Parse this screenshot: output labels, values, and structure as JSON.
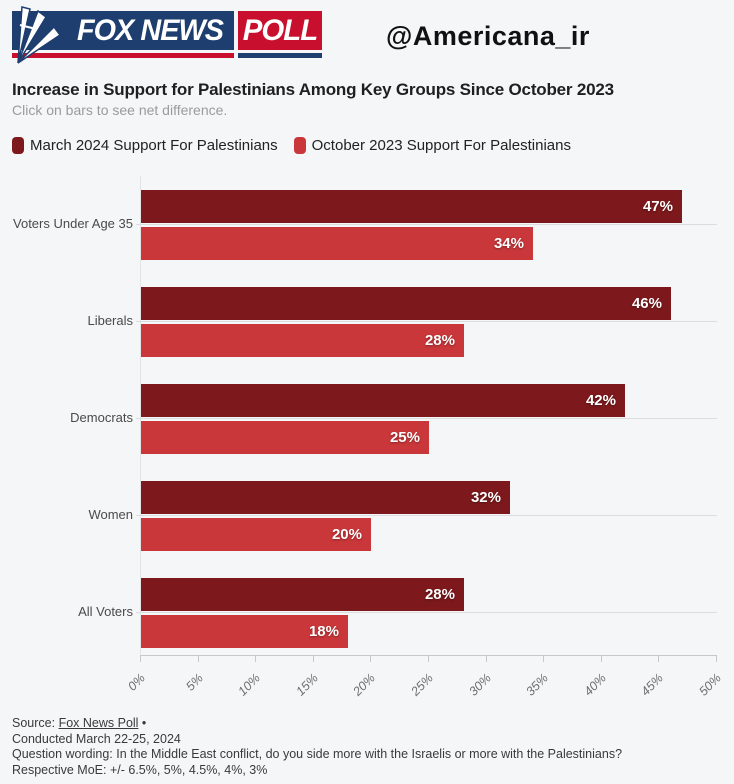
{
  "header": {
    "logo": {
      "fox_text": "FOX NEWS",
      "poll_text": "POLL"
    },
    "handle": "@Americana_ir"
  },
  "title": "Increase in Support for Palestinians Among Key Groups Since October 2023",
  "subtitle": "Click on bars to see net difference.",
  "chart_data": {
    "type": "bar",
    "orientation": "horizontal",
    "title": "Increase in Support for Palestinians Among Key Groups Since October 2023",
    "categories": [
      "Voters Under Age 35",
      "Liberals",
      "Democrats",
      "Women",
      "All Voters"
    ],
    "series": [
      {
        "name": "March 2024 Support For Palestinians",
        "color": "#7d191c",
        "values": [
          47,
          46,
          42,
          32,
          28
        ]
      },
      {
        "name": "October 2023 Support For Palestinians",
        "color": "#c9373a",
        "values": [
          34,
          28,
          25,
          20,
          18
        ]
      }
    ],
    "value_suffix": "%",
    "xlim": [
      0,
      50
    ],
    "x_tick_labels": [
      "0%",
      "5%",
      "10%",
      "15%",
      "20%",
      "25%",
      "30%",
      "35%",
      "40%",
      "45%",
      "50%"
    ],
    "grid": true,
    "legend_position": "top"
  },
  "footer": {
    "source_prefix": "Source: ",
    "source_link": "Fox News Poll",
    "source_bullet": " •",
    "conducted": "Conducted March 22-25, 2024",
    "question": "Question wording: In the Middle East conflict, do you side more with the Israelis or more with the Palestinians?",
    "moe": "Respective MoE: +/- 6.5%, 5%, 4.5%, 4%, 3%"
  },
  "colors": {
    "background": "#f5f6f8",
    "march_bar": "#7d191c",
    "october_bar": "#c9373a",
    "logo_blue": "#1e3e6f",
    "logo_red": "#c8102e",
    "gridline": "#dcdddf",
    "axis": "#c8c8c8"
  }
}
